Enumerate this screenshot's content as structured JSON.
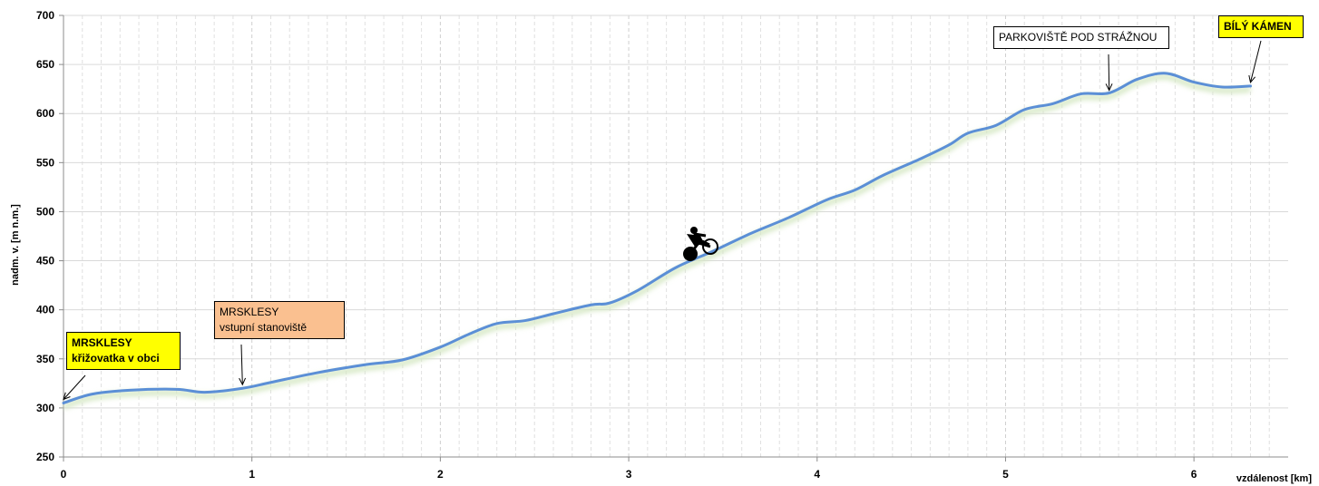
{
  "chart_data": {
    "type": "line",
    "title": "",
    "xlabel": "vzdálenost [km]",
    "ylabel": "nadm. v. [m n.m.]",
    "xlim": [
      0,
      6.5
    ],
    "ylim": [
      250,
      700
    ],
    "xticks": [
      "0",
      "1",
      "2",
      "3",
      "4",
      "5",
      "6"
    ],
    "yticks": [
      "250",
      "300",
      "350",
      "400",
      "450",
      "500",
      "550",
      "600",
      "650",
      "700"
    ],
    "grid": true,
    "series_color": "#5b8fd6",
    "x": [
      0,
      0.15,
      0.35,
      0.6,
      0.75,
      0.95,
      1.1,
      1.35,
      1.6,
      1.8,
      2.0,
      2.15,
      2.3,
      2.45,
      2.6,
      2.8,
      2.9,
      3.05,
      3.25,
      3.45,
      3.65,
      3.85,
      4.05,
      4.2,
      4.35,
      4.55,
      4.7,
      4.8,
      4.95,
      5.1,
      5.25,
      5.4,
      5.55,
      5.7,
      5.85,
      6.0,
      6.15,
      6.3
    ],
    "y": [
      305,
      314,
      318,
      319,
      316,
      320,
      326,
      336,
      344,
      349,
      362,
      375,
      386,
      389,
      396,
      405,
      407,
      420,
      443,
      460,
      478,
      494,
      512,
      522,
      537,
      554,
      568,
      580,
      588,
      604,
      610,
      620,
      621,
      635,
      641,
      632,
      627,
      628
    ],
    "annotations": [
      {
        "lines": [
          "MRSKLESY",
          "křižovatka v obci"
        ],
        "bold": true,
        "color": "#ffff00",
        "x": 0.0,
        "y": 305
      },
      {
        "lines": [
          "MRSKLESY",
          "vstupní stanoviště"
        ],
        "bold": false,
        "color": "#fac090",
        "x": 0.95,
        "y": 320
      },
      {
        "lines": [
          "PARKOVIŠTĚ POD STRÁŽNOU"
        ],
        "bold": false,
        "color": "#ffffff",
        "x": 5.55,
        "y": 620
      },
      {
        "lines": [
          "BÍLÝ KÁMEN"
        ],
        "bold": true,
        "color": "#ffff00",
        "x": 6.3,
        "y": 628
      }
    ]
  }
}
